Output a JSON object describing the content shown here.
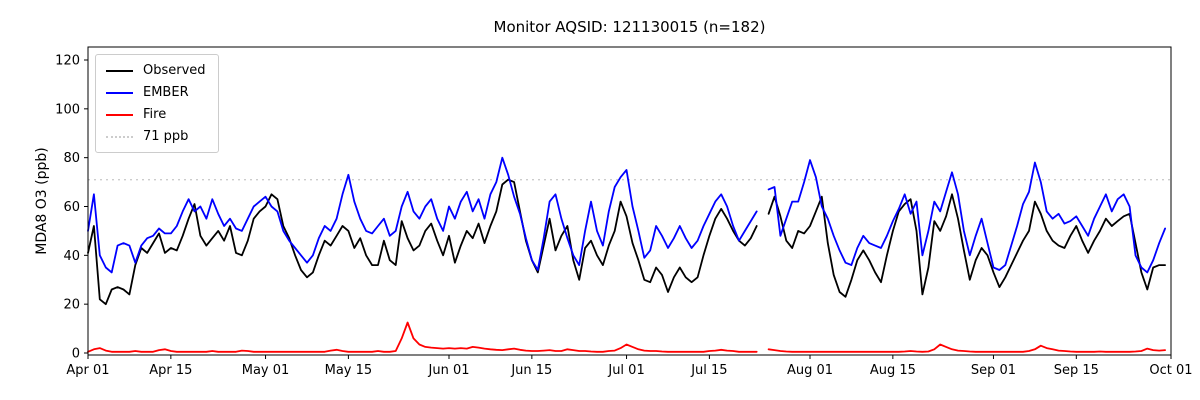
{
  "title": "Monitor AQSID: 121130015 (n=182)",
  "y_axis_label": "MDA8 O3 (ppb)",
  "colors": {
    "observed": "#000000",
    "ember": "#0000ff",
    "fire": "#ff0000",
    "threshold": "#cccccc",
    "axis": "#000000"
  },
  "chart_data": {
    "type": "line",
    "title": "Monitor AQSID: 121130015 (n=182)",
    "xlabel": "",
    "ylabel": "MDA8 O3 (ppb)",
    "ylim": [
      -1,
      125
    ],
    "xlim_days": [
      0,
      183
    ],
    "x_start": "Apr 01",
    "grid": false,
    "y_ticks": [
      0,
      20,
      40,
      60,
      80,
      100,
      120
    ],
    "x_ticks": [
      {
        "day": 0,
        "label": "Apr 01"
      },
      {
        "day": 14,
        "label": "Apr 15"
      },
      {
        "day": 30,
        "label": "May 01"
      },
      {
        "day": 44,
        "label": "May 15"
      },
      {
        "day": 61,
        "label": "Jun 01"
      },
      {
        "day": 75,
        "label": "Jun 15"
      },
      {
        "day": 91,
        "label": "Jul 01"
      },
      {
        "day": 105,
        "label": "Jul 15"
      },
      {
        "day": 122,
        "label": "Aug 01"
      },
      {
        "day": 136,
        "label": "Aug 15"
      },
      {
        "day": 153,
        "label": "Sep 01"
      },
      {
        "day": 167,
        "label": "Sep 15"
      },
      {
        "day": 183,
        "label": "Oct 01"
      }
    ],
    "threshold": {
      "value": 71,
      "label": "71 ppb",
      "color": "#cccccc",
      "style": "dotted"
    },
    "missing_day": "Jul 24",
    "n": 182,
    "legend": {
      "position": "upper left",
      "items": [
        {
          "label": "Observed",
          "color": "#000000",
          "dash": false
        },
        {
          "label": "EMBER",
          "color": "#0000ff",
          "dash": false
        },
        {
          "label": "Fire",
          "color": "#ff0000",
          "dash": false
        },
        {
          "label": "71 ppb",
          "color": "#cccccc",
          "dash": true
        }
      ]
    },
    "series": [
      {
        "name": "Observed",
        "color": "#000000",
        "values": [
          41,
          52,
          22,
          20,
          26,
          27,
          26,
          24,
          36,
          43,
          41,
          45,
          49,
          41,
          43,
          42,
          48,
          55,
          61,
          48,
          44,
          47,
          50,
          46,
          52,
          41,
          40,
          46,
          55,
          58,
          60,
          65,
          63,
          52,
          47,
          40,
          34,
          31,
          33,
          40,
          46,
          44,
          48,
          52,
          50,
          43,
          47,
          40,
          36,
          36,
          46,
          38,
          36,
          54,
          47,
          42,
          44,
          50,
          53,
          46,
          40,
          48,
          37,
          44,
          50,
          47,
          53,
          45,
          52,
          58,
          69,
          71,
          70,
          58,
          46,
          38,
          33,
          44,
          55,
          42,
          48,
          52,
          38,
          30,
          43,
          46,
          40,
          36,
          44,
          50,
          62,
          56,
          45,
          38,
          30,
          29,
          35,
          32,
          25,
          31,
          35,
          31,
          29,
          31,
          40,
          48,
          55,
          59,
          55,
          50,
          46,
          44,
          47,
          52,
          null,
          57,
          64,
          56,
          46,
          43,
          50,
          49,
          52,
          58,
          64,
          45,
          32,
          25,
          23,
          30,
          38,
          42,
          38,
          33,
          29,
          40,
          50,
          58,
          61,
          63,
          50,
          24,
          35,
          54,
          50,
          56,
          65,
          55,
          42,
          30,
          38,
          43,
          40,
          33,
          27,
          31,
          36,
          41,
          46,
          50,
          62,
          57,
          50,
          46,
          44,
          43,
          48,
          52,
          46,
          41,
          46,
          50,
          55,
          52,
          54,
          56,
          57,
          45,
          33,
          26,
          35,
          36,
          36
        ]
      },
      {
        "name": "EMBER",
        "color": "#0000ff",
        "values": [
          50,
          65,
          40,
          35,
          33,
          44,
          45,
          44,
          37,
          44,
          47,
          48,
          51,
          49,
          49,
          52,
          58,
          63,
          58,
          60,
          55,
          63,
          57,
          52,
          55,
          51,
          50,
          55,
          60,
          62,
          64,
          60,
          58,
          50,
          46,
          43,
          40,
          37,
          40,
          47,
          52,
          50,
          55,
          65,
          73,
          62,
          55,
          50,
          49,
          52,
          55,
          48,
          50,
          60,
          66,
          58,
          55,
          60,
          63,
          55,
          50,
          60,
          55,
          62,
          66,
          58,
          63,
          55,
          65,
          70,
          80,
          73,
          64,
          57,
          47,
          38,
          34,
          47,
          62,
          65,
          55,
          47,
          40,
          36,
          50,
          62,
          50,
          44,
          58,
          68,
          72,
          75,
          60,
          50,
          39,
          42,
          52,
          48,
          43,
          47,
          52,
          47,
          43,
          46,
          52,
          57,
          62,
          65,
          60,
          52,
          46,
          50,
          54,
          58,
          null,
          67,
          68,
          48,
          55,
          62,
          62,
          70,
          79,
          72,
          60,
          55,
          48,
          42,
          37,
          36,
          43,
          48,
          45,
          44,
          43,
          48,
          54,
          59,
          65,
          57,
          62,
          40,
          50,
          62,
          58,
          66,
          74,
          65,
          50,
          40,
          48,
          55,
          45,
          35,
          34,
          36,
          44,
          52,
          61,
          66,
          78,
          70,
          58,
          55,
          57,
          53,
          54,
          56,
          52,
          48,
          55,
          60,
          65,
          58,
          63,
          65,
          60,
          40,
          35,
          33,
          38,
          45,
          51
        ]
      },
      {
        "name": "Fire",
        "color": "#ff0000",
        "values": [
          0.5,
          1.5,
          2,
          1,
          0.5,
          0.5,
          0.5,
          0.5,
          0.8,
          0.5,
          0.5,
          0.5,
          1.2,
          1.5,
          0.8,
          0.5,
          0.5,
          0.5,
          0.5,
          0.5,
          0.5,
          0.8,
          0.5,
          0.5,
          0.5,
          0.5,
          1,
          0.8,
          0.5,
          0.5,
          0.5,
          0.5,
          0.5,
          0.5,
          0.5,
          0.5,
          0.5,
          0.5,
          0.5,
          0.5,
          0.5,
          1,
          1.3,
          0.8,
          0.5,
          0.5,
          0.5,
          0.5,
          0.5,
          0.8,
          0.5,
          0.5,
          0.8,
          6,
          12.5,
          6,
          3.5,
          2.5,
          2.2,
          2,
          1.8,
          2,
          1.8,
          2,
          1.8,
          2.5,
          2.2,
          1.8,
          1.5,
          1.3,
          1.2,
          1.5,
          1.8,
          1.3,
          1,
          0.8,
          0.8,
          1,
          1.2,
          0.8,
          0.8,
          1.5,
          1.2,
          0.8,
          0.8,
          0.6,
          0.5,
          0.5,
          0.8,
          1,
          2,
          3.5,
          2.5,
          1.5,
          1,
          0.8,
          0.8,
          0.6,
          0.5,
          0.5,
          0.5,
          0.5,
          0.5,
          0.5,
          0.5,
          0.8,
          1,
          1.3,
          1,
          0.8,
          0.5,
          0.5,
          0.5,
          0.5,
          null,
          1.5,
          1.2,
          0.8,
          0.6,
          0.5,
          0.5,
          0.5,
          0.5,
          0.5,
          0.5,
          0.5,
          0.5,
          0.5,
          0.5,
          0.5,
          0.5,
          0.5,
          0.5,
          0.5,
          0.5,
          0.5,
          0.5,
          0.5,
          0.6,
          0.8,
          0.6,
          0.5,
          0.6,
          1.5,
          3.5,
          2.5,
          1.5,
          1,
          0.8,
          0.6,
          0.5,
          0.5,
          0.5,
          0.5,
          0.5,
          0.5,
          0.5,
          0.5,
          0.5,
          0.8,
          1.5,
          3,
          2,
          1.5,
          1,
          0.8,
          0.6,
          0.5,
          0.5,
          0.5,
          0.5,
          0.6,
          0.5,
          0.5,
          0.5,
          0.5,
          0.5,
          0.6,
          0.8,
          1.8,
          1.2,
          1,
          1.2
        ]
      }
    ]
  }
}
